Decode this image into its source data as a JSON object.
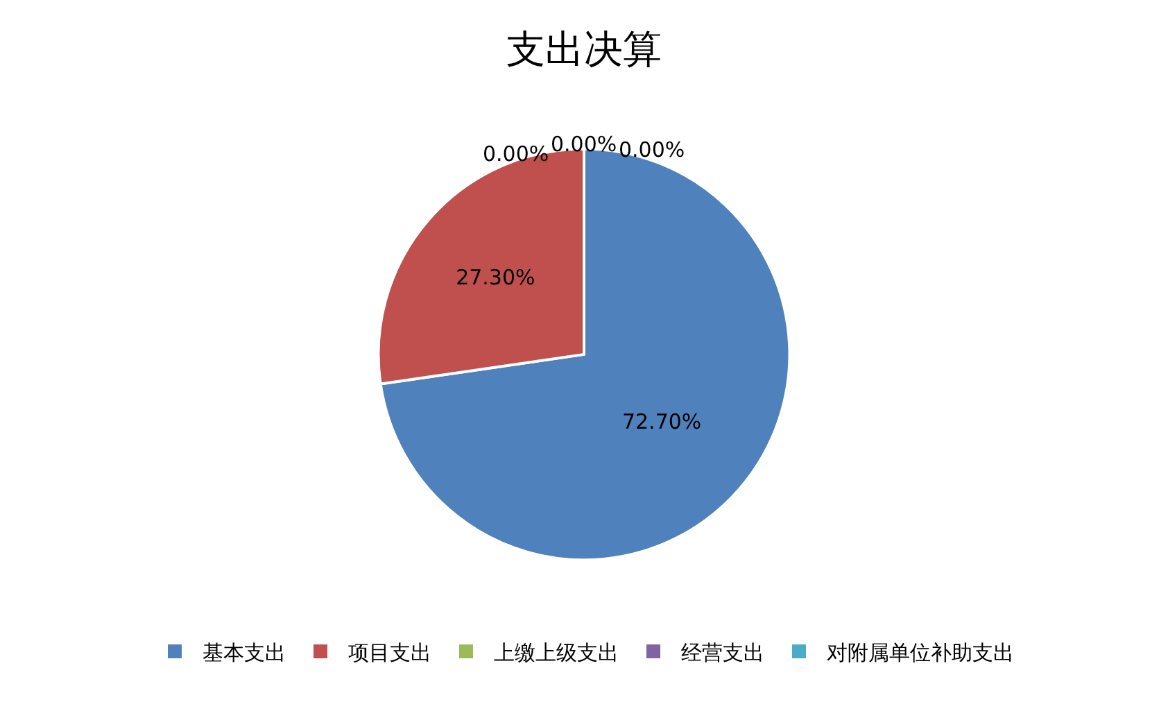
{
  "chart_data": {
    "type": "pie",
    "title": "支出决算",
    "categories": [
      "基本支出",
      "项目支出",
      "上缴上级支出",
      "经营支出",
      "对附属单位补助支出"
    ],
    "values": [
      72.7,
      27.3,
      0,
      0,
      0
    ],
    "colors": [
      "#4f81bd",
      "#c0504d",
      "#9bbb59",
      "#8064a2",
      "#4bacc6"
    ],
    "value_labels": [
      "72.70%",
      "27.30%",
      "0.00%",
      "0.00%",
      "0.00%"
    ],
    "legend": "bottom"
  }
}
